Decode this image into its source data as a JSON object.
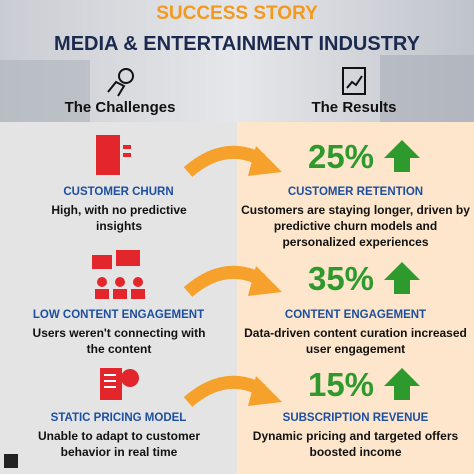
{
  "header": {
    "tag": "SUCCESS STORY",
    "title": "MEDIA & ENTERTAINMENT INDUSTRY"
  },
  "columns": {
    "left": "The Challenges",
    "right": "The Results"
  },
  "rows": [
    {
      "challenge": {
        "title": "CUSTOMER CHURN",
        "text": "High, with no predictive insights"
      },
      "result": {
        "metric": "25%",
        "title": "CUSTOMER RETENTION",
        "text": "Customers are staying longer, driven by predictive churn models and personalized experiences"
      }
    },
    {
      "challenge": {
        "title": "LOW CONTENT ENGAGEMENT",
        "text": "Users weren't connecting with the content"
      },
      "result": {
        "metric": "35%",
        "title": "CONTENT ENGAGEMENT",
        "text": "Data-driven content curation increased user engagement"
      }
    },
    {
      "challenge": {
        "title": "STATIC PRICING MODEL",
        "text": "Unable to adapt to customer behavior in real time"
      },
      "result": {
        "metric": "15%",
        "title": "SUBSCRIPTION REVENUE",
        "text": "Dynamic pricing and targeted offers boosted income"
      }
    }
  ]
}
